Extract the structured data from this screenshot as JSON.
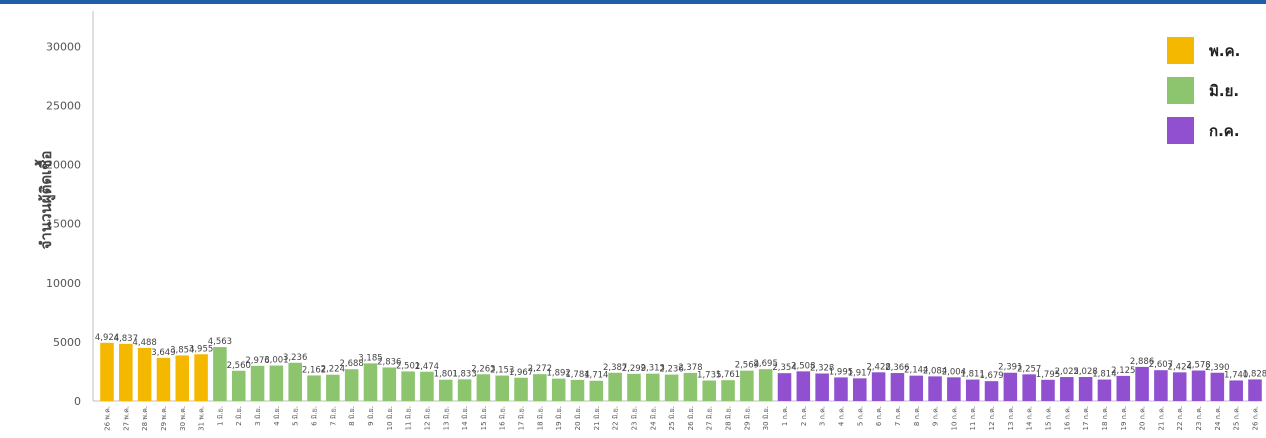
{
  "chart_data": {
    "type": "bar",
    "title": "",
    "xlabel": "",
    "ylabel": "จำนวนผู้ติดเชื้อ",
    "ylim": [
      0,
      33000
    ],
    "yticks": [
      0,
      5000,
      10000,
      15000,
      20000,
      25000,
      30000
    ],
    "grid": false,
    "legend_position": "top-right",
    "series": [
      {
        "name": "พ.ค.",
        "color": "#f4b800",
        "categories": [
          "26 พ.ค.",
          "27 พ.ค.",
          "28 พ.ค.",
          "29 พ.ค.",
          "30 พ.ค.",
          "31 พ.ค."
        ],
        "values": [
          4924,
          4837,
          4488,
          3649,
          3854,
          3955
        ],
        "labels": [
          "4,924",
          "4,837",
          "4,488",
          "3,649",
          "3,854",
          "3,955"
        ]
      },
      {
        "name": "มิ.ย.",
        "color": "#8cc56e",
        "categories": [
          "1 มิ.ย.",
          "2 มิ.ย.",
          "3 มิ.ย.",
          "4 มิ.ย.",
          "5 มิ.ย.",
          "6 มิ.ย.",
          "7 มิ.ย.",
          "8 มิ.ย.",
          "9 มิ.ย.",
          "10 มิ.ย.",
          "11 มิ.ย.",
          "12 มิ.ย.",
          "13 มิ.ย.",
          "14 มิ.ย.",
          "15 มิ.ย.",
          "16 มิ.ย.",
          "17 มิ.ย.",
          "18 มิ.ย.",
          "19 มิ.ย.",
          "20 มิ.ย.",
          "21 มิ.ย.",
          "22 มิ.ย.",
          "23 มิ.ย.",
          "24 มิ.ย.",
          "25 มิ.ย.",
          "26 มิ.ย.",
          "27 มิ.ย.",
          "28 มิ.ย.",
          "29 มิ.ย.",
          "30 มิ.ย."
        ],
        "values": [
          4563,
          2560,
          2976,
          3001,
          3236,
          2162,
          2224,
          2688,
          3185,
          2836,
          2501,
          2474,
          1801,
          1833,
          2263,
          2153,
          1967,
          2272,
          1892,
          1784,
          1714,
          2387,
          2299,
          2313,
          2236,
          2378,
          1735,
          1761,
          2569,
          2695
        ],
        "labels": [
          "4,563",
          "2,560",
          "2,976",
          "3,001",
          "3,236",
          "2,162",
          "2,224",
          "2,688",
          "3,185",
          "2,836",
          "2,501",
          "2,474",
          "1,801",
          "1,833",
          "2,263",
          "2,153",
          "1,967",
          "2,272",
          "1,892",
          "1,784",
          "1,714",
          "2,387",
          "2,299",
          "2,313",
          "2,236",
          "2,378",
          "1,735",
          "1,761",
          "2,569",
          "2,695"
        ]
      },
      {
        "name": "ก.ค.",
        "color": "#9150cf",
        "categories": [
          "1 ก.ค.",
          "2 ก.ค.",
          "3 ก.ค.",
          "4 ก.ค.",
          "5 ก.ค.",
          "6 ก.ค.",
          "7 ก.ค.",
          "8 ก.ค.",
          "9 ก.ค.",
          "10 ก.ค.",
          "11 ก.ค.",
          "12 ก.ค.",
          "13 ก.ค.",
          "14 ก.ค.",
          "15 ก.ค.",
          "16 ก.ค.",
          "17 ก.ค.",
          "18 ก.ค.",
          "19 ก.ค.",
          "20 ก.ค.",
          "21 ก.ค.",
          "22 ก.ค.",
          "23 ก.ค.",
          "24 ก.ค.",
          "25 ก.ค.",
          "26 ก.ค."
        ],
        "values": [
          2354,
          2508,
          2328,
          1995,
          1917,
          2428,
          2366,
          2144,
          2084,
          2004,
          1811,
          1679,
          2391,
          2257,
          1795,
          2025,
          2028,
          1814,
          2125,
          2886,
          2607,
          2424,
          2578,
          2390,
          1740,
          1828
        ],
        "labels": [
          "2,354",
          "2,508",
          "2,328",
          "1,995",
          "1,917",
          "2,428",
          "2,366",
          "2,144",
          "2,084",
          "2,004",
          "1,811",
          "1,679",
          "2,391",
          "2,257",
          "1,795",
          "2,025",
          "2,028",
          "1,814",
          "2,125",
          "2,886",
          "2,607",
          "2,424",
          "2,578",
          "2,390",
          "1,740",
          "1,828"
        ]
      }
    ]
  }
}
